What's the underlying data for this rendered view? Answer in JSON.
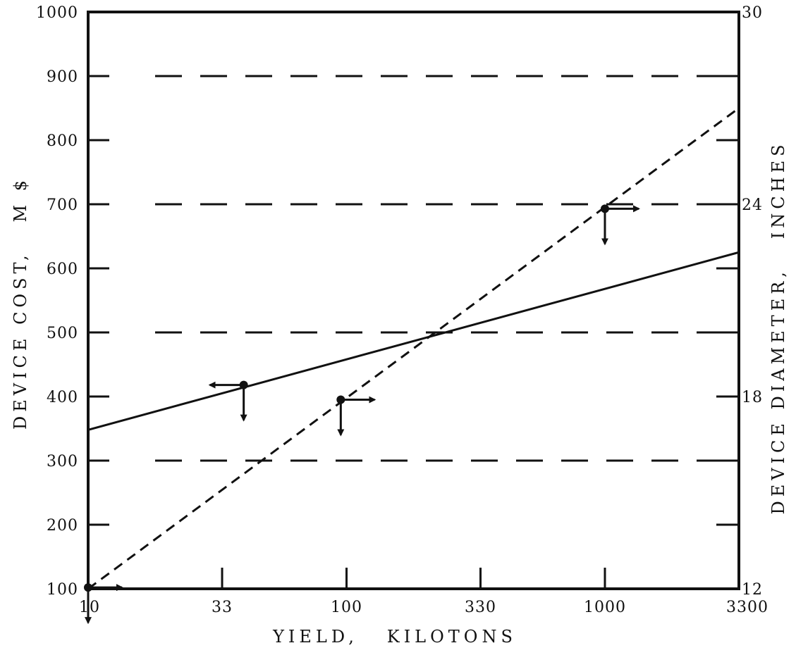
{
  "chart_data": {
    "type": "line",
    "xlabel": "YIELD,   KILOTONS",
    "ylabel_left": "DEVICE COST,   M $",
    "ylabel_right": "DEVICE DIAMETER,   INCHES",
    "x_scale": "log",
    "x_range": [
      10,
      3300
    ],
    "x_ticks": [
      10,
      33,
      100,
      330,
      1000,
      3300
    ],
    "x_tick_labels": [
      "10",
      "33",
      "100",
      "330",
      "1000",
      "3300"
    ],
    "ylim_left": [
      100,
      1000
    ],
    "y_ticks_left": [
      100,
      200,
      300,
      400,
      500,
      600,
      700,
      800,
      900,
      1000
    ],
    "y_tick_labels_left": [
      "100",
      "200",
      "300",
      "400",
      "500",
      "600",
      "700",
      "800",
      "900",
      "1000"
    ],
    "ylim_right": [
      12,
      30
    ],
    "y_ticks_right": [
      12,
      14,
      16,
      18,
      20,
      22,
      24,
      26,
      28,
      30
    ],
    "y_tick_labels_right": [
      "12",
      "",
      "",
      "18",
      "",
      "",
      "24",
      "",
      "",
      "30"
    ],
    "grid": "dashed horizontal at 300, 500, 700, 900 (left axis)",
    "series": [
      {
        "axis": "left",
        "style": "solid",
        "x": [
          10,
          3300
        ],
        "y": [
          348,
          625
        ]
      },
      {
        "axis": "right",
        "style": "dashed",
        "x": [
          10,
          3300
        ],
        "y": [
          12,
          27.0
        ]
      }
    ],
    "annotations": [
      {
        "x": 40,
        "y_left": 418,
        "arrows": [
          "left",
          "down"
        ]
      },
      {
        "x": 95,
        "y_left": 395,
        "arrows": [
          "right",
          "down"
        ]
      },
      {
        "x": 1000,
        "y_left": 693,
        "arrows": [
          "right",
          "down"
        ]
      },
      {
        "x": 10,
        "y_left": 102,
        "arrows": [
          "right",
          "down"
        ]
      }
    ]
  }
}
